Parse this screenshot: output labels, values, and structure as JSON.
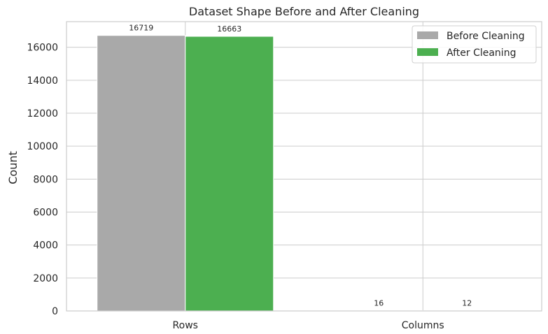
{
  "chart_data": {
    "type": "bar",
    "title": "Dataset Shape Before and After Cleaning",
    "xlabel": "",
    "ylabel": "Count",
    "categories": [
      "Rows",
      "Columns"
    ],
    "series": [
      {
        "name": "Before Cleaning",
        "values": [
          16719,
          16
        ],
        "color": "#a9a9a9"
      },
      {
        "name": "After Cleaning",
        "values": [
          16663,
          12
        ],
        "color": "#4caf50"
      }
    ],
    "ylim": [
      0,
      17555
    ],
    "yticks": [
      0,
      2000,
      4000,
      6000,
      8000,
      10000,
      12000,
      14000,
      16000
    ],
    "grid": true,
    "legend_position": "top-right"
  }
}
